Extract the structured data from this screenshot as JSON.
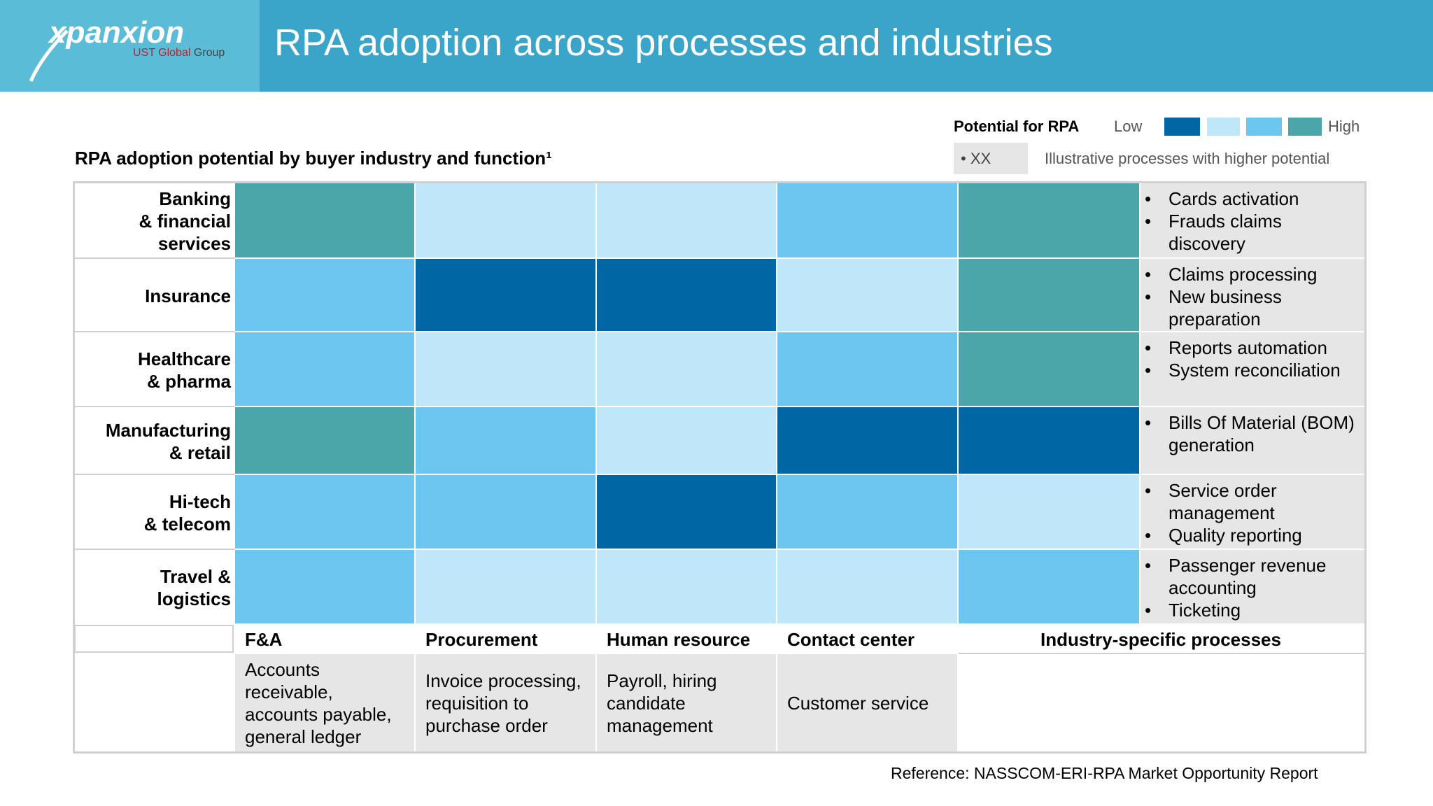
{
  "header": {
    "logo": "xpanxion",
    "logo_tag_red": "UST Global",
    "logo_tag_grey": "Group",
    "title": "RPA adoption across processes and industries"
  },
  "subtitle": "RPA adoption potential by buyer industry and function¹",
  "legend": {
    "title": "Potential for RPA",
    "low": "Low",
    "high": "High",
    "colors": [
      "#0066a4",
      "#bfe6f9",
      "#6dc6ef",
      "#4aa6a8"
    ],
    "example": "• XX",
    "example_text": "Illustrative processes with higher potential"
  },
  "columns": [
    {
      "name": "F&A",
      "description": "Accounts receivable, accounts payable, general ledger"
    },
    {
      "name": "Procurement",
      "description": "Invoice processing, requisition to purchase order"
    },
    {
      "name": "Human resource",
      "description": "Payroll, hiring candidate management"
    },
    {
      "name": "Contact center",
      "description": "Customer service"
    },
    {
      "name": "Industry-specific processes",
      "description": null
    }
  ],
  "rows": [
    {
      "label": "Banking\n& financial\nservices",
      "cells": [
        "#4aa6a8",
        "#bfe6f9",
        "#bfe6f9",
        "#6dc6ef",
        "#4aa6a8"
      ],
      "processes": [
        "Cards activation",
        "Frauds claims discovery"
      ]
    },
    {
      "label": "Insurance",
      "cells": [
        "#6dc6ef",
        "#0066a4",
        "#0066a4",
        "#bfe6f9",
        "#4aa6a8"
      ],
      "processes": [
        "Claims processing",
        "New business preparation"
      ]
    },
    {
      "label": "Healthcare\n& pharma",
      "cells": [
        "#6dc6ef",
        "#bfe6f9",
        "#bfe6f9",
        "#6dc6ef",
        "#4aa6a8"
      ],
      "processes": [
        "Reports automation",
        "System reconciliation"
      ]
    },
    {
      "label": "Manufacturing\n& retail",
      "cells": [
        "#4aa6a8",
        "#6dc6ef",
        "#bfe6f9",
        "#0066a4",
        "#0066a4"
      ],
      "processes": [
        "Bills Of Material (BOM) generation"
      ]
    },
    {
      "label": "Hi-tech\n& telecom",
      "cells": [
        "#6dc6ef",
        "#6dc6ef",
        "#0066a4",
        "#6dc6ef",
        "#bfe6f9"
      ],
      "processes": [
        "Service order management",
        "Quality reporting"
      ]
    },
    {
      "label": "Travel &\nlogistics",
      "cells": [
        "#6dc6ef",
        "#bfe6f9",
        "#bfe6f9",
        "#bfe6f9",
        "#6dc6ef"
      ],
      "processes": [
        "Passenger revenue accounting",
        "Ticketing"
      ]
    }
  ],
  "reference": "Reference: NASSCOM-ERI-RPA Market Opportunity Report"
}
